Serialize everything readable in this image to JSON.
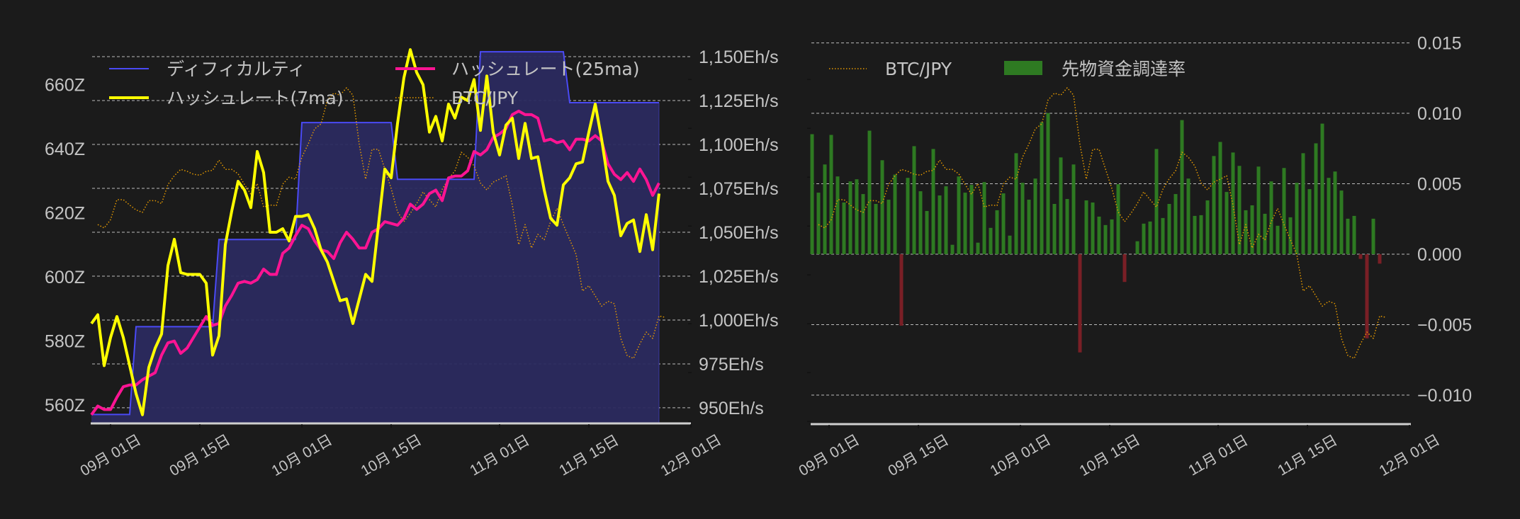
{
  "chart_data": [
    {
      "type": "line",
      "title": "",
      "x_tick_labels": [
        "09月 01日",
        "09月 15日",
        "10月 01日",
        "10月 15日",
        "11月 01日",
        "11月 15日",
        "12月 01日"
      ],
      "x_tick_dates": [
        "09-01",
        "09-15",
        "10-01",
        "10-15",
        "11-01",
        "11-15",
        "12-01"
      ],
      "grid": true,
      "legend_placement": "top",
      "y_left": {
        "ticks": [
          560,
          580,
          600,
          620,
          640,
          660
        ],
        "tick_labels": [
          "560Z",
          "580Z",
          "600Z",
          "620Z",
          "640Z",
          "660Z"
        ],
        "ylim": [
          554.3,
          674.3
        ]
      },
      "y_right": {
        "ticks": [
          950,
          975,
          1000,
          1025,
          1050,
          1075,
          1100,
          1125,
          1150
        ],
        "tick_labels": [
          "950Eh/s",
          "975Eh/s",
          "1,000Eh/s",
          "1,025Eh/s",
          "1,050Eh/s",
          "1,075Eh/s",
          "1,100Eh/s",
          "1,125Eh/s",
          "1,150Eh/s"
        ],
        "ylim": [
          941.1,
          1160.1
        ]
      },
      "y_btc_hidden": {
        "ylim": [
          11960000,
          19830000
        ]
      },
      "series": [
        {
          "name": "ディフィカルティ",
          "axis": "left",
          "style": "area",
          "color": "#4a4af5",
          "fill": "#2b2a5f",
          "start_date": "08-29",
          "values": [
            557.1,
            557.1,
            557.1,
            557.1,
            557.1,
            557.1,
            557.1,
            584.5,
            584.5,
            584.5,
            584.5,
            584.5,
            584.5,
            584.5,
            584.5,
            584.5,
            584.5,
            584.5,
            584.5,
            584.5,
            611.7,
            611.7,
            611.7,
            611.7,
            611.7,
            611.7,
            611.7,
            611.7,
            611.7,
            611.7,
            611.7,
            611.7,
            611.7,
            648.2,
            648.2,
            648.2,
            648.2,
            648.2,
            648.2,
            648.2,
            648.2,
            648.2,
            648.2,
            648.2,
            648.2,
            648.2,
            648.2,
            648.2,
            630.5,
            630.5,
            630.5,
            630.5,
            630.5,
            630.5,
            630.5,
            630.5,
            630.5,
            630.5,
            630.5,
            630.5,
            630.5,
            670.3,
            670.3,
            670.3,
            670.3,
            670.3,
            670.3,
            670.3,
            670.3,
            670.3,
            670.3,
            670.3,
            670.3,
            670.3,
            670.3,
            654.4,
            654.4,
            654.4,
            654.4,
            654.4,
            654.4,
            654.4,
            654.4,
            654.4,
            654.4,
            654.4,
            654.4,
            654.4,
            654.4,
            654.4
          ]
        },
        {
          "name": "ハッシュレート(7ma)",
          "axis": "right",
          "color": "#ffff00",
          "start_date": "08-29",
          "values": [
            998,
            1003,
            974,
            990,
            1002,
            990,
            974,
            958,
            946,
            973,
            984,
            992,
            1031,
            1046,
            1027,
            1026,
            1026,
            1026,
            1021,
            980,
            991,
            1043,
            1062,
            1079,
            1074,
            1064,
            1096,
            1084,
            1050,
            1050,
            1052,
            1045,
            1059,
            1059,
            1060,
            1052,
            1040,
            1033,
            1022,
            1011,
            1012,
            998,
            1012,
            1026,
            1022,
            1054,
            1086,
            1081,
            1112,
            1138,
            1154,
            1141,
            1134,
            1107,
            1116,
            1102,
            1123,
            1115,
            1127,
            1125,
            1137,
            1108,
            1139,
            1107,
            1094,
            1111,
            1115,
            1092,
            1112,
            1092,
            1093,
            1074,
            1058,
            1054,
            1077,
            1081,
            1089,
            1090,
            1107,
            1123,
            1103,
            1079,
            1071,
            1048,
            1055,
            1057,
            1039,
            1060,
            1040,
            1072
          ]
        },
        {
          "name": "ハッシュレート(25ma)",
          "axis": "right",
          "color": "#ff1493",
          "start_date": "08-29",
          "values": [
            946,
            951,
            949,
            949,
            956,
            962,
            963,
            963,
            966,
            968,
            970,
            980,
            987,
            988,
            981,
            984,
            990,
            996,
            1002,
            997,
            998,
            1008,
            1014,
            1021,
            1022,
            1021,
            1023,
            1029,
            1026,
            1026,
            1038,
            1041,
            1048,
            1054,
            1052,
            1045,
            1040,
            1039,
            1035,
            1044,
            1050,
            1046,
            1041,
            1041,
            1050,
            1052,
            1056,
            1055,
            1054,
            1058,
            1066,
            1063,
            1066,
            1072,
            1074,
            1068,
            1081,
            1082,
            1082,
            1085,
            1096,
            1094,
            1097,
            1104,
            1106,
            1109,
            1117,
            1119,
            1117,
            1117,
            1115,
            1102,
            1103,
            1101,
            1102,
            1097,
            1103,
            1103,
            1102,
            1105,
            1102,
            1089,
            1083,
            1080,
            1084,
            1079,
            1086,
            1080,
            1071,
            1078
          ]
        },
        {
          "name": "BTC/JPY",
          "axis": "hidden",
          "style": "dotted",
          "color": "#e69a00",
          "start_date": "08-30",
          "values": [
            16030000,
            15960000,
            16130000,
            16540000,
            16540000,
            16430000,
            16330000,
            16280000,
            16520000,
            16520000,
            16460000,
            16850000,
            17030000,
            17160000,
            17120000,
            17060000,
            17040000,
            17120000,
            17140000,
            17350000,
            17160000,
            17160000,
            17070000,
            16850000,
            16650000,
            16870000,
            16390000,
            16430000,
            16420000,
            16860000,
            17000000,
            16960000,
            17410000,
            17680000,
            17990000,
            18090000,
            18580000,
            18720000,
            18680000,
            18830000,
            18680000,
            17670000,
            16960000,
            17570000,
            17570000,
            17170000,
            16770000,
            16290000,
            16090000,
            16260000,
            16460000,
            16700000,
            16540000,
            16390000,
            16750000,
            16970000,
            17130000,
            17510000,
            17410000,
            17230000,
            16880000,
            16740000,
            16900000,
            16960000,
            17030000,
            16430000,
            15620000,
            16030000,
            15550000,
            15830000,
            15720000,
            16090000,
            16360000,
            16030000,
            15720000,
            15420000,
            14670000,
            14780000,
            14570000,
            14360000,
            14460000,
            14410000,
            13700000,
            13350000,
            13290000,
            13590000,
            13830000,
            13700000,
            14160000,
            14130000
          ]
        }
      ]
    },
    {
      "type": "bar",
      "title": "",
      "x_tick_labels": [
        "09月 01日",
        "09月 15日",
        "10月 01日",
        "10月 15日",
        "11月 01日",
        "11月 15日",
        "12月 01日"
      ],
      "x_tick_dates": [
        "09-01",
        "09-15",
        "10-01",
        "10-15",
        "11-01",
        "11-15",
        "12-01"
      ],
      "grid": true,
      "legend_placement": "top-left",
      "y_right": {
        "ticks": [
          0.015,
          0.01,
          0.005,
          0.0,
          -0.005,
          -0.01
        ],
        "tick_labels": [
          "0.015",
          "0.010",
          "0.005",
          "0.000",
          "−0.005",
          "−0.010"
        ],
        "ylim": [
          -0.01201,
          0.01528
        ]
      },
      "y_btc_hidden": {
        "ylim": [
          11960000,
          19830000
        ]
      },
      "positive_color": "#2e7a22",
      "negative_color": "#7a1f26",
      "series": [
        {
          "name": "BTC/JPY",
          "style": "dotted",
          "color": "#e69a00",
          "start_date": "08-30",
          "same_as": "BTC/JPY"
        },
        {
          "name": "先物資金調達率",
          "style": "bar",
          "start_date": "08-29",
          "values": [
            0.00852,
            0.00437,
            0.00637,
            0.00847,
            0.00552,
            0.00367,
            0.00517,
            0.00532,
            0.00427,
            0.00877,
            0.00357,
            0.00667,
            0.00387,
            0.00565,
            -0.00507,
            0.00542,
            0.00767,
            0.00447,
            0.00307,
            0.00747,
            0.00417,
            0.00482,
            0.00067,
            0.00552,
            0.00437,
            0.00492,
            0.00082,
            0.00512,
            0.00187,
            0.00312,
            0.00432,
            0.00132,
            0.00717,
            0.00507,
            0.00387,
            0.00537,
            0.00937,
            0.01002,
            0.00357,
            0.00687,
            0.00392,
            0.00637,
            -0.00697,
            0.00382,
            0.00367,
            0.00267,
            0.00207,
            0.00247,
            0.00497,
            -0.00197,
            0,
            0.00092,
            0.00217,
            0.00232,
            0.00747,
            0.00257,
            0.00357,
            0.00427,
            0.00952,
            0.00537,
            0.00272,
            0.00277,
            0.00382,
            0.00697,
            0.00797,
            0.00442,
            0.00722,
            0.00627,
            0.00312,
            0.00347,
            0.00622,
            0.00287,
            0.00517,
            0.00202,
            0.00612,
            0.00262,
            0.00507,
            0.00717,
            0.00462,
            0.00787,
            0.00927,
            0.00542,
            0.00587,
            0.00452,
            0.00252,
            0.00272,
            -0.00033,
            -0.00597,
            0.00252,
            -0.00067
          ]
        }
      ]
    }
  ],
  "legend_left": {
    "difficulty": "ディフィカルティ",
    "hashrate_7ma": "ハッシュレート(7ma)",
    "hashrate_25ma": "ハッシュレート(25ma)",
    "btc": "BTC/JPY"
  },
  "legend_right": {
    "btc": "BTC/JPY",
    "funding": "先物資金調達率"
  }
}
